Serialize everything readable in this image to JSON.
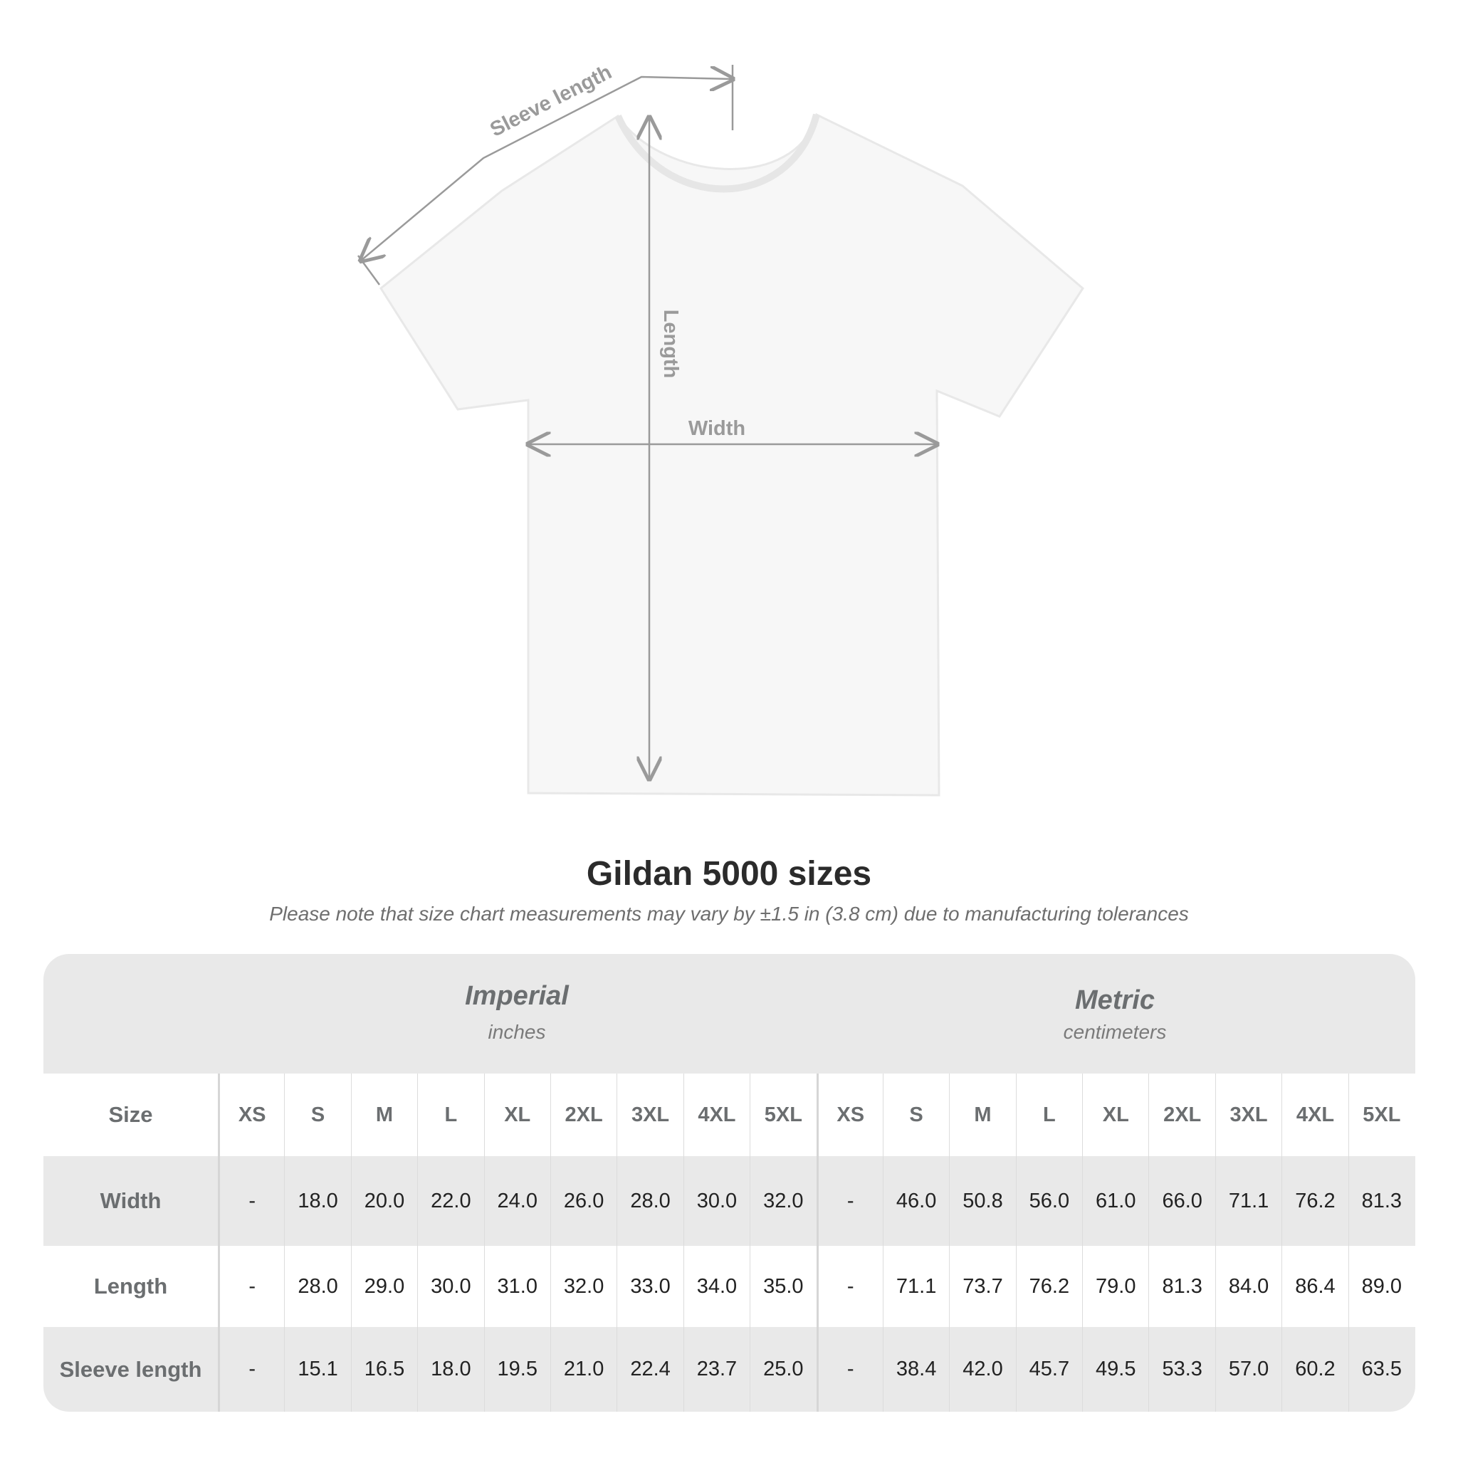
{
  "diagram": {
    "labels": {
      "sleeve": "Sleeve length",
      "length": "Length",
      "width": "Width"
    },
    "colors": {
      "shirt": "#f7f7f7",
      "outline": "#e6e6e6",
      "arrow": "#9a9a9a"
    }
  },
  "title": "Gildan 5000 sizes",
  "note": "Please note that size chart measurements may vary by ±1.5 in (3.8 cm) due to manufacturing tolerances",
  "table": {
    "imperial": {
      "name": "Imperial",
      "unit": "inches"
    },
    "metric": {
      "name": "Metric",
      "unit": "centimeters"
    },
    "size_label": "Size",
    "sizes": [
      "XS",
      "S",
      "M",
      "L",
      "XL",
      "2XL",
      "3XL",
      "4XL",
      "5XL"
    ],
    "rows": [
      {
        "label": "Width",
        "imperial": [
          "-",
          "18.0",
          "20.0",
          "22.0",
          "24.0",
          "26.0",
          "28.0",
          "30.0",
          "32.0"
        ],
        "metric": [
          "-",
          "46.0",
          "50.8",
          "56.0",
          "61.0",
          "66.0",
          "71.1",
          "76.2",
          "81.3"
        ]
      },
      {
        "label": "Length",
        "imperial": [
          "-",
          "28.0",
          "29.0",
          "30.0",
          "31.0",
          "32.0",
          "33.0",
          "34.0",
          "35.0"
        ],
        "metric": [
          "-",
          "71.1",
          "73.7",
          "76.2",
          "79.0",
          "81.3",
          "84.0",
          "86.4",
          "89.0"
        ]
      },
      {
        "label": "Sleeve length",
        "imperial": [
          "-",
          "15.1",
          "16.5",
          "18.0",
          "19.5",
          "21.0",
          "22.4",
          "23.7",
          "25.0"
        ],
        "metric": [
          "-",
          "38.4",
          "42.0",
          "45.7",
          "49.5",
          "53.3",
          "57.0",
          "60.2",
          "63.5"
        ]
      }
    ],
    "colors": {
      "band": "#e9e9e9",
      "header_text": "#6b6e70",
      "value_text": "#222222"
    }
  }
}
